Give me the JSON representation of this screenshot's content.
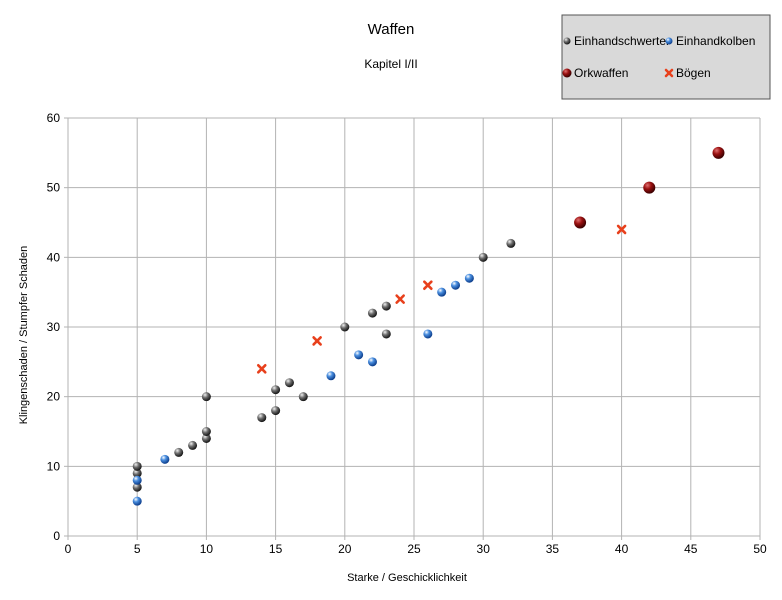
{
  "chart_data": {
    "type": "scatter",
    "title": "Waffen",
    "subtitle": "Kapitel I/II",
    "xlabel": "Starke / Geschicklichkeit",
    "ylabel": "Klingenschaden / Stumpfer Schaden",
    "xlim": [
      0,
      50
    ],
    "ylim": [
      0,
      60
    ],
    "xticks": [
      "0",
      "5",
      "10",
      "15",
      "20",
      "25",
      "30",
      "35",
      "40",
      "45",
      "50"
    ],
    "yticks": [
      "0",
      "10",
      "20",
      "30",
      "40",
      "50",
      "60"
    ],
    "grid": true,
    "legend_position": "top-right",
    "series": [
      {
        "name": "Einhandschwerter",
        "marker": "sphere",
        "color": "#3a3a3a",
        "points": [
          [
            5,
            7
          ],
          [
            5,
            9
          ],
          [
            5,
            10
          ],
          [
            8,
            12
          ],
          [
            9,
            13
          ],
          [
            10,
            14
          ],
          [
            10,
            15
          ],
          [
            10,
            20
          ],
          [
            14,
            17
          ],
          [
            15,
            18
          ],
          [
            15,
            21
          ],
          [
            16,
            22
          ],
          [
            17,
            20
          ],
          [
            20,
            30
          ],
          [
            22,
            32
          ],
          [
            23,
            29
          ],
          [
            23,
            33
          ],
          [
            30,
            40
          ],
          [
            32,
            42
          ]
        ]
      },
      {
        "name": "Einhandkolben",
        "marker": "sphere",
        "color": "#1f5fbf",
        "points": [
          [
            5,
            5
          ],
          [
            5,
            8
          ],
          [
            7,
            11
          ],
          [
            19,
            23
          ],
          [
            21,
            26
          ],
          [
            22,
            25
          ],
          [
            26,
            29
          ],
          [
            27,
            35
          ],
          [
            28,
            36
          ],
          [
            29,
            37
          ]
        ]
      },
      {
        "name": "Orkwaffen",
        "marker": "sphere-large",
        "color": "#8b0000",
        "points": [
          [
            37,
            45
          ],
          [
            42,
            50
          ],
          [
            47,
            55
          ]
        ]
      },
      {
        "name": "Bögen",
        "marker": "cross",
        "color": "#e8401c",
        "points": [
          [
            14,
            24
          ],
          [
            18,
            28
          ],
          [
            24,
            34
          ],
          [
            26,
            36
          ],
          [
            40,
            44
          ]
        ]
      }
    ]
  }
}
